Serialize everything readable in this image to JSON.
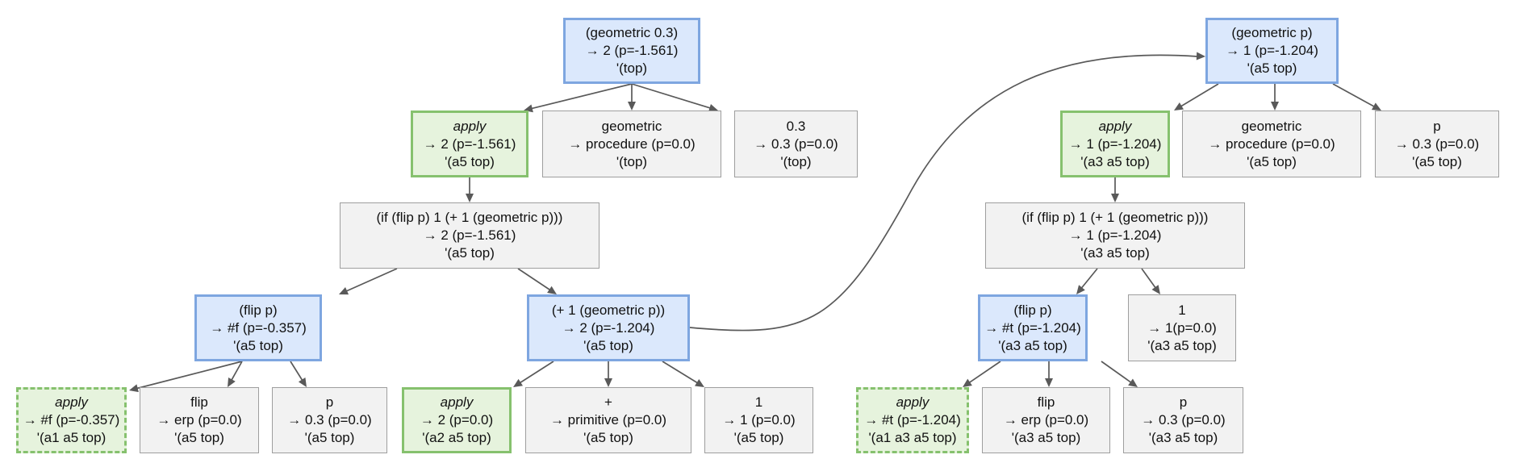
{
  "nodes": {
    "root_a": {
      "l1": "(geometric 0.3)",
      "l2": "→ 2 (p=-1.561)",
      "l3": "'(top)"
    },
    "apply_a": {
      "l1": "apply",
      "l2": "→ 2 (p=-1.561)",
      "l3": "'(a5 top)"
    },
    "geo_proc_a": {
      "l1": "geometric",
      "l2": "→ procedure (p=0.0)",
      "l3": "'(top)"
    },
    "const_a": {
      "l1": "0.3",
      "l2": "→ 0.3 (p=0.0)",
      "l3": "'(top)"
    },
    "if_a": {
      "l1": "(if (flip p) 1 (+ 1 (geometric p)))",
      "l2": "→ 2 (p=-1.561)",
      "l3": "'(a5 top)"
    },
    "flip_a": {
      "l1": "(flip p)",
      "l2": "→ #f (p=-0.357)",
      "l3": "'(a5 top)"
    },
    "plus_a": {
      "l1": "(+ 1 (geometric p))",
      "l2": "→ 2 (p=-1.204)",
      "l3": "'(a5 top)"
    },
    "apply_flip_a": {
      "l1": "apply",
      "l2": "→ #f (p=-0.357)",
      "l3": "'(a1 a5 top)"
    },
    "flip_erp_a": {
      "l1": "flip",
      "l2": "→ erp (p=0.0)",
      "l3": "'(a5 top)"
    },
    "p_a": {
      "l1": "p",
      "l2": "→ 0.3 (p=0.0)",
      "l3": "'(a5 top)"
    },
    "apply_plus_a": {
      "l1": "apply",
      "l2": "→ 2 (p=0.0)",
      "l3": "'(a2 a5 top)"
    },
    "plus_prim_a": {
      "l1": "+",
      "l2": "→ primitive (p=0.0)",
      "l3": "'(a5 top)"
    },
    "one_a": {
      "l1": "1",
      "l2": "→ 1 (p=0.0)",
      "l3": "'(a5 top)"
    },
    "root_b": {
      "l1": "(geometric p)",
      "l2": "→ 1 (p=-1.204)",
      "l3": "'(a5 top)"
    },
    "apply_b": {
      "l1": "apply",
      "l2": "→ 1 (p=-1.204)",
      "l3": "'(a3 a5 top)"
    },
    "geo_proc_b": {
      "l1": "geometric",
      "l2": "→ procedure (p=0.0)",
      "l3": "'(a5 top)"
    },
    "p_b": {
      "l1": "p",
      "l2": "→ 0.3 (p=0.0)",
      "l3": "'(a5 top)"
    },
    "if_b": {
      "l1": "(if (flip p) 1 (+ 1 (geometric p)))",
      "l2": "→ 1 (p=-1.204)",
      "l3": "'(a3 a5 top)"
    },
    "flip_b": {
      "l1": "(flip p)",
      "l2": "→ #t (p=-1.204)",
      "l3": "'(a3 a5 top)"
    },
    "one_b": {
      "l1": "1",
      "l2": "→ 1(p=0.0)",
      "l3": "'(a3 a5 top)"
    },
    "apply_flip_b": {
      "l1": "apply",
      "l2": "→ #t (p=-1.204)",
      "l3": "'(a1 a3 a5 top)"
    },
    "flip_erp_b": {
      "l1": "flip",
      "l2": "→ erp (p=0.0)",
      "l3": "'(a3 a5 top)"
    },
    "p_c": {
      "l1": "p",
      "l2": "→ 0.3 (p=0.0)",
      "l3": "'(a3 a5 top)"
    }
  },
  "colors": {
    "gray_fill": "#f2f2f2",
    "gray_border": "#9e9e9e",
    "blue_fill": "#dbe8fc",
    "blue_border": "#7ea6e0",
    "green_fill": "#e6f3dd",
    "green_border": "#86c16e",
    "edge": "#595959"
  }
}
